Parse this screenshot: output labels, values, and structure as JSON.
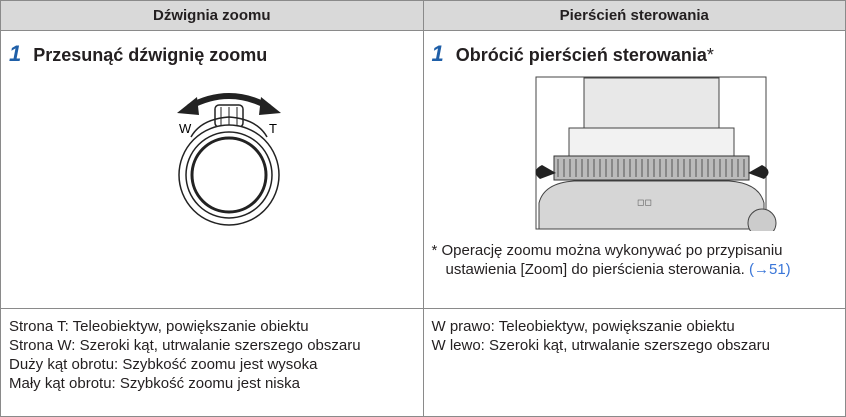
{
  "table": {
    "headers": [
      "Dźwignia zoomu",
      "Pierścień sterowania"
    ],
    "steps": [
      {
        "number": "1",
        "text": "Przesunąć dźwignię zoomu"
      },
      {
        "number": "1",
        "text": "Obrócić pierścień sterowania",
        "mark": "*"
      }
    ],
    "lever_labels": [
      "W",
      "T"
    ],
    "note": {
      "mark": "*",
      "text": "Operację zoomu można wykonywać po przypisaniu ustawienia [Zoom] do pierścienia sterowania.",
      "link": "(→51)"
    },
    "descriptions": [
      [
        {
          "label": "Strona T:",
          "text": "Teleobiektyw, powiększanie obiektu"
        },
        {
          "label": "Strona W:",
          "text": "Szeroki kąt, utrwalanie szerszego obszaru"
        },
        {
          "label": "Duży kąt obrotu:",
          "text": "Szybkość zoomu jest wysoka"
        },
        {
          "label": "Mały kąt obrotu:",
          "text": "Szybkość zoomu jest niska"
        }
      ],
      [
        {
          "label": "W prawo:",
          "text": "Teleobiektyw, powiększanie obiektu"
        },
        {
          "label": "W lewo:",
          "text": "Szeroki kąt, utrwalanie szerszego obszaru"
        }
      ]
    ]
  }
}
